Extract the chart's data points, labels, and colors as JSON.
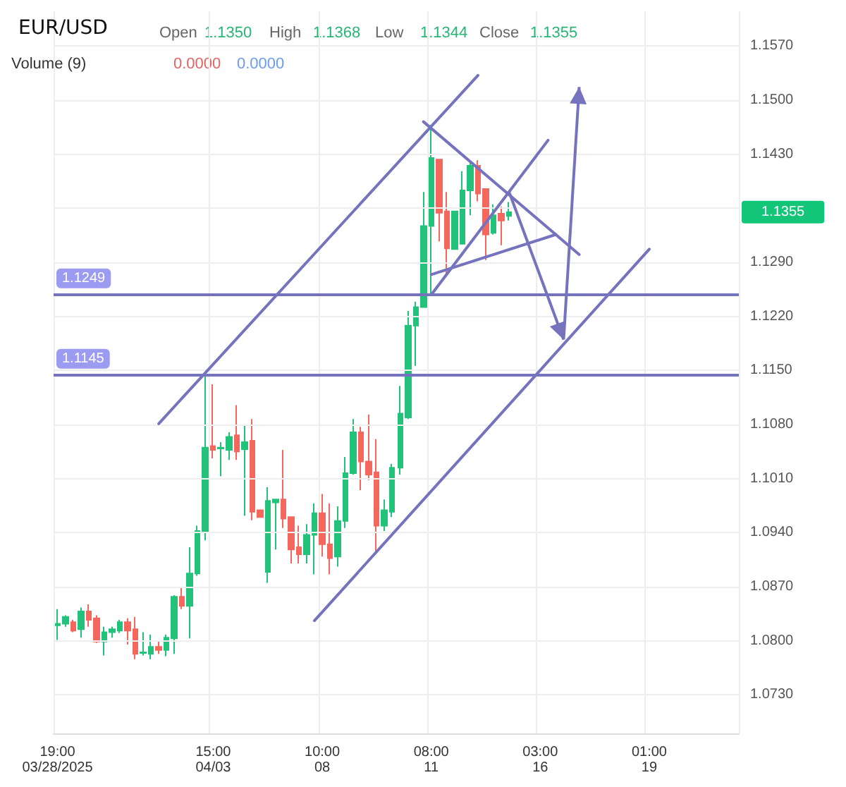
{
  "chart_data": {
    "type": "candlestick",
    "title": "EUR/USD",
    "annotations": [
      "Open",
      "1.1350",
      "High",
      "1.1368",
      "Low",
      "1.1344",
      "Close",
      "1.1355",
      "Volume (9)",
      "0.0000",
      "0.0000",
      "1.1355"
    ],
    "categories": [
      "19:00\n03/28/2025",
      null,
      null,
      null,
      null,
      null,
      null,
      null,
      null,
      null,
      null,
      null,
      null,
      null,
      null,
      null,
      null,
      null,
      null,
      null,
      "15:00\n04/03",
      null,
      null,
      null,
      null,
      null,
      null,
      null,
      null,
      null,
      null,
      null,
      null,
      null,
      "10:00\n08",
      null,
      null,
      null,
      null,
      null,
      null,
      null,
      null,
      null,
      null,
      null,
      null,
      null,
      "08:00\n11",
      null,
      null,
      null,
      null,
      null,
      null,
      null,
      null,
      null,
      null,
      null,
      null,
      null,
      "03:00\n16",
      null,
      null,
      null,
      null,
      null,
      null,
      null,
      null,
      null,
      null,
      null,
      null,
      null,
      "01:00\n19",
      null,
      null,
      null,
      null,
      null,
      null,
      null,
      null,
      null,
      null,
      null
    ],
    "ohlc": [
      [
        1.082,
        1.0841,
        1.0801,
        1.0822
      ],
      [
        1.0822,
        1.0833,
        1.0818,
        1.0831
      ],
      [
        1.0824,
        1.0827,
        1.0811,
        1.0813
      ],
      [
        1.0815,
        1.0843,
        1.0804,
        1.0838
      ],
      [
        1.0838,
        1.0847,
        1.0818,
        1.0827
      ],
      [
        1.0829,
        1.0833,
        1.0797,
        1.0799
      ],
      [
        1.0799,
        1.0818,
        1.0781,
        1.0811
      ],
      [
        1.0811,
        1.0818,
        1.0804,
        1.0815
      ],
      [
        1.0813,
        1.0827,
        1.081,
        1.0824
      ],
      [
        1.0824,
        1.0829,
        1.0795,
        1.0813
      ],
      [
        1.0815,
        1.0831,
        1.0776,
        1.0783
      ],
      [
        1.0784,
        1.0811,
        1.0781,
        1.0785
      ],
      [
        1.0783,
        1.0808,
        1.0776,
        1.0792
      ],
      [
        1.0792,
        1.0799,
        1.0783,
        1.0788
      ],
      [
        1.0788,
        1.0808,
        1.078,
        1.0804
      ],
      [
        1.0803,
        1.0859,
        1.0783,
        1.0857
      ],
      [
        1.0857,
        1.0868,
        1.0841,
        1.0845
      ],
      [
        1.0845,
        1.0921,
        1.0803,
        1.0887
      ],
      [
        1.0887,
        1.0949,
        1.0884,
        1.0942
      ],
      [
        1.0941,
        1.1142,
        1.093,
        1.105
      ],
      [
        1.1052,
        1.1132,
        1.1036,
        1.1047
      ],
      [
        1.1049,
        1.1057,
        1.1013,
        1.105
      ],
      [
        1.1047,
        1.107,
        1.1034,
        1.1064
      ],
      [
        1.1066,
        1.1105,
        1.1034,
        1.1045
      ],
      [
        1.1048,
        1.1078,
        1.0962,
        1.1057
      ],
      [
        1.1059,
        1.1087,
        1.0956,
        1.0967
      ],
      [
        1.0969,
        1.0969,
        1.096,
        1.096
      ],
      [
        1.0889,
        1.0999,
        1.0875,
        1.0981
      ],
      [
        1.0979,
        1.0983,
        1.0918,
        1.0983
      ],
      [
        1.0983,
        1.1047,
        1.0946,
        1.0958
      ],
      [
        1.096,
        1.096,
        1.09,
        1.0918
      ],
      [
        1.0921,
        1.0949,
        1.09,
        1.0912
      ],
      [
        1.0912,
        1.0951,
        1.09,
        1.0937
      ],
      [
        1.0937,
        1.0978,
        1.0886,
        1.0965
      ],
      [
        1.0965,
        1.099,
        1.0909,
        1.0925
      ],
      [
        1.0925,
        1.0978,
        1.0886,
        1.0907
      ],
      [
        1.0909,
        1.0974,
        1.0896,
        1.0955
      ],
      [
        1.0955,
        1.1038,
        1.0946,
        1.1017
      ],
      [
        1.1017,
        1.1087,
        1.1015,
        1.107
      ],
      [
        1.107,
        1.1077,
        1.0995,
        1.1032
      ],
      [
        1.1032,
        1.1093,
        1.1008,
        1.1015
      ],
      [
        1.1018,
        1.1061,
        1.0914,
        1.0949
      ],
      [
        1.0949,
        1.0983,
        1.0942,
        1.0969
      ],
      [
        1.0967,
        1.1029,
        1.096,
        1.1024
      ],
      [
        1.1024,
        1.113,
        1.1015,
        1.1094
      ],
      [
        1.1089,
        1.1227,
        1.1087,
        1.1208
      ],
      [
        1.1208,
        1.1239,
        1.1156,
        1.1232
      ],
      [
        1.1232,
        1.1381,
        1.1231,
        1.1337
      ],
      [
        1.1337,
        1.1468,
        1.1247,
        1.1425
      ],
      [
        1.1423,
        1.1423,
        1.1317,
        1.1354
      ],
      [
        1.1356,
        1.1381,
        1.1275,
        1.1308
      ],
      [
        1.1307,
        1.1356,
        1.1307,
        1.1356
      ],
      [
        1.1314,
        1.1408,
        1.1314,
        1.1383
      ],
      [
        1.1383,
        1.142,
        1.1351,
        1.1415
      ],
      [
        1.1415,
        1.1422,
        1.1369,
        1.1379
      ],
      [
        1.1385,
        1.1385,
        1.1293,
        1.1326
      ],
      [
        1.1328,
        1.1365,
        1.1326,
        1.1351
      ],
      [
        1.1353,
        1.1362,
        1.1312,
        1.1344
      ],
      [
        1.135,
        1.1368,
        1.1344,
        1.1355
      ],
      null,
      null,
      null,
      null,
      null,
      null,
      null,
      null,
      null,
      null,
      null,
      null,
      null,
      null,
      null,
      null,
      null,
      null,
      null,
      null,
      null,
      null,
      null,
      null,
      null,
      null,
      null,
      null,
      null
    ],
    "colors": [
      "#22c27a",
      "#22c27a",
      "#f4675d",
      "#22c27a",
      "#f4675d",
      "#f4675d",
      "#22c27a",
      "#22c27a",
      "#22c27a",
      "#f4675d",
      "#f4675d",
      "#22c27a",
      "#22c27a",
      "#f4675d",
      "#22c27a",
      "#22c27a",
      "#f4675d",
      "#22c27a",
      "#22c27a",
      "#22c27a",
      "#f4675d",
      "#22c27a",
      "#22c27a",
      "#f4675d",
      "#22c27a",
      "#f4675d",
      "#f4675d",
      "#22c27a",
      "#22c27a",
      "#f4675d",
      "#f4675d",
      "#f4675d",
      "#22c27a",
      "#22c27a",
      "#f4675d",
      "#f4675d",
      "#22c27a",
      "#22c27a",
      "#22c27a",
      "#f4675d",
      "#f4675d",
      "#f4675d",
      "#22c27a",
      "#22c27a",
      "#22c27a",
      "#22c27a",
      "#22c27a",
      "#22c27a",
      "#22c27a",
      "#f4675d",
      "#f4675d",
      "#22c27a",
      "#22c27a",
      "#22c27a",
      "#f4675d",
      "#f4675d",
      "#22c27a",
      "#f4675d",
      "#22c27a",
      null,
      null,
      null,
      null,
      null,
      null,
      null,
      null,
      null,
      null,
      null,
      null,
      null,
      null,
      null,
      null,
      null,
      null,
      null,
      null,
      null,
      null,
      null,
      null,
      null,
      null,
      null,
      null,
      null
    ],
    "ylim": [
      1.068,
      1.1615
    ],
    "yticks": [
      {
        "value": 1.073,
        "label": "1.0730"
      },
      {
        "value": 1.08,
        "label": "1.0800"
      },
      {
        "value": 1.087,
        "label": "1.0870"
      },
      {
        "value": 1.094,
        "label": "1.0940"
      },
      {
        "value": 1.101,
        "label": "1.1010"
      },
      {
        "value": 1.108,
        "label": "1.1080"
      },
      {
        "value": 1.115,
        "label": "1.1150"
      },
      {
        "value": 1.122,
        "label": "1.1220"
      },
      {
        "value": 1.129,
        "label": "1.1290"
      },
      {
        "value": 1.136,
        "label": null
      },
      {
        "value": 1.143,
        "label": "1.1430"
      },
      {
        "value": 1.15,
        "label": "1.1500"
      },
      {
        "value": 1.157,
        "label": "1.1570"
      }
    ],
    "ref_lines": [
      {
        "axis": "y",
        "value": 1.1249,
        "label": "1.1249",
        "color": "#7573bd"
      },
      {
        "axis": "y",
        "value": 1.1145,
        "label": "1.1145",
        "color": "#7573bd"
      }
    ],
    "series": [
      {
        "type": "line",
        "color": "#7573bd",
        "values": [
          null,
          null,
          null,
          null,
          null,
          null,
          null,
          null,
          null,
          null,
          null,
          null,
          null,
          1.1081,
          null,
          null,
          null,
          null,
          null,
          null,
          null,
          null,
          null,
          null,
          null,
          null,
          null,
          null,
          null,
          null,
          null,
          null,
          null,
          null,
          null,
          null,
          null,
          null,
          null,
          null,
          null,
          null,
          null,
          null,
          null,
          null,
          null,
          null,
          null,
          null,
          null,
          null,
          null,
          null,
          1.1532,
          null,
          null,
          null,
          null,
          null,
          null,
          null,
          null,
          null,
          null,
          null,
          null,
          null,
          null,
          null,
          null,
          null,
          null,
          null,
          null,
          null,
          null,
          null,
          null,
          null,
          null,
          null,
          null,
          null,
          null,
          null,
          null,
          null
        ]
      },
      {
        "type": "line",
        "color": "#7573bd",
        "values": [
          null,
          null,
          null,
          null,
          null,
          null,
          null,
          null,
          null,
          null,
          null,
          null,
          null,
          null,
          null,
          null,
          null,
          null,
          null,
          null,
          null,
          null,
          null,
          null,
          null,
          null,
          null,
          null,
          null,
          null,
          null,
          null,
          null,
          null,
          null,
          null,
          null,
          null,
          null,
          null,
          null,
          null,
          null,
          null,
          null,
          null,
          null,
          null,
          1.1248,
          null,
          null,
          null,
          null,
          null,
          null,
          null,
          null,
          null,
          null,
          null,
          null,
          null,
          null,
          1.1448,
          null,
          null,
          null,
          null,
          null,
          null,
          null,
          null,
          null,
          null,
          null,
          null,
          null,
          null,
          null,
          null,
          null,
          null,
          null,
          null,
          null,
          null,
          null,
          null
        ]
      },
      {
        "type": "line",
        "color": "#7573bd",
        "values": [
          null,
          null,
          null,
          null,
          null,
          null,
          null,
          null,
          null,
          null,
          null,
          null,
          null,
          null,
          null,
          null,
          null,
          null,
          null,
          null,
          null,
          null,
          null,
          null,
          null,
          null,
          null,
          null,
          null,
          null,
          null,
          null,
          null,
          1.0826,
          null,
          null,
          null,
          null,
          null,
          null,
          null,
          null,
          null,
          null,
          null,
          null,
          null,
          null,
          null,
          null,
          null,
          null,
          null,
          null,
          null,
          null,
          null,
          null,
          null,
          null,
          null,
          null,
          null,
          null,
          null,
          null,
          null,
          null,
          null,
          null,
          null,
          null,
          null,
          null,
          null,
          null,
          1.1307,
          null,
          null,
          null,
          null,
          null,
          null,
          null,
          null,
          null,
          null,
          null
        ]
      },
      {
        "type": "line",
        "color": "#7573bd",
        "values": [
          null,
          null,
          null,
          null,
          null,
          null,
          null,
          null,
          null,
          null,
          null,
          null,
          null,
          null,
          null,
          null,
          null,
          null,
          null,
          null,
          null,
          null,
          null,
          null,
          null,
          null,
          null,
          null,
          null,
          null,
          null,
          null,
          null,
          null,
          null,
          null,
          null,
          null,
          null,
          null,
          null,
          null,
          null,
          null,
          null,
          null,
          null,
          1.1472,
          null,
          null,
          null,
          null,
          null,
          null,
          null,
          null,
          null,
          null,
          null,
          null,
          null,
          null,
          null,
          null,
          null,
          null,
          null,
          1.13,
          null,
          null,
          null,
          null,
          null,
          null,
          null,
          null,
          null,
          null,
          null,
          null,
          null,
          null,
          null,
          null,
          null,
          null,
          null,
          null
        ]
      },
      {
        "type": "line",
        "color": "#7573bd",
        "values": [
          null,
          null,
          null,
          null,
          null,
          null,
          null,
          null,
          null,
          null,
          null,
          null,
          null,
          null,
          null,
          null,
          null,
          null,
          null,
          null,
          null,
          null,
          null,
          null,
          null,
          null,
          null,
          null,
          null,
          null,
          null,
          null,
          null,
          null,
          null,
          null,
          null,
          null,
          null,
          null,
          null,
          null,
          null,
          null,
          null,
          null,
          null,
          null,
          1.1274,
          null,
          null,
          null,
          null,
          null,
          null,
          null,
          null,
          null,
          null,
          null,
          null,
          null,
          null,
          null,
          1.1326,
          null,
          null,
          null,
          null,
          null,
          null,
          null,
          null,
          null,
          null,
          null,
          null,
          null,
          null,
          null,
          null,
          null,
          null,
          null,
          null,
          null,
          null,
          null
        ]
      }
    ],
    "marker": "none",
    "line_style": "solid",
    "grid": true
  }
}
